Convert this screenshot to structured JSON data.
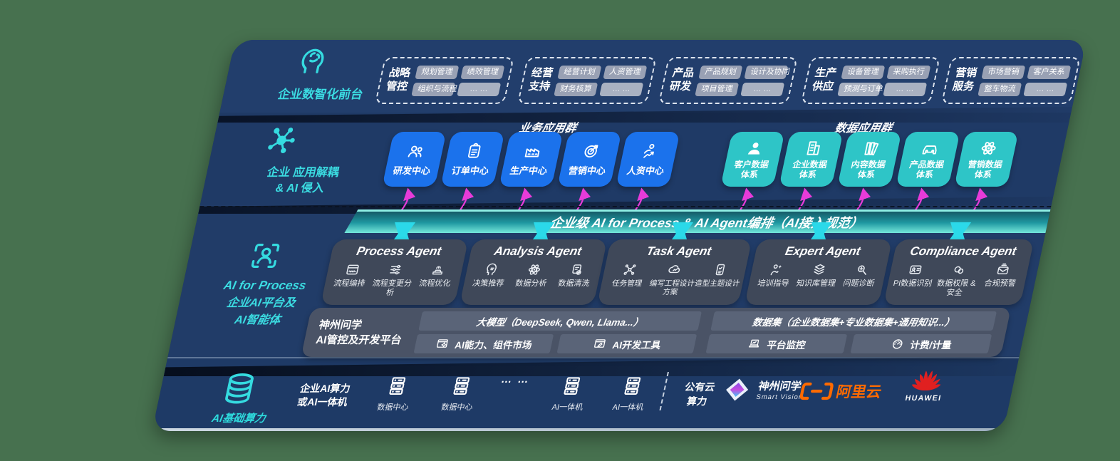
{
  "colors": {
    "background": "#47714F",
    "slab_navy": "#203A66",
    "accent_cyan": "#35DBE0",
    "business_blue": "#1B72EC",
    "data_teal": "#2EC5C7",
    "bar_teal_gradient": [
      "#155A68",
      "#1F97A0",
      "#74E7DB"
    ],
    "arrow_magenta": "#E73BD9",
    "arrow_cyan": "#2BD9E9",
    "agent_box": "#3F4859",
    "platform_box": "#4A5366",
    "aliyun_orange": "#FF6A00",
    "huawei_red": "#E02020"
  },
  "front_office": {
    "label": "企业数智化前台",
    "icon": "brain-head-icon",
    "groups": [
      {
        "name_lines": [
          "战略",
          "管控"
        ],
        "chips": [
          "规划管理",
          "绩效管理",
          "组织与流程",
          "… …"
        ]
      },
      {
        "name_lines": [
          "经营",
          "支持"
        ],
        "chips": [
          "经营计划",
          "人资管理",
          "财务核算",
          "… …"
        ]
      },
      {
        "name_lines": [
          "产品",
          "研发"
        ],
        "chips": [
          "产品规划",
          "设计及协同",
          "项目管理",
          "… …"
        ]
      },
      {
        "name_lines": [
          "生产",
          "供应"
        ],
        "chips": [
          "设备管理",
          "采购执行",
          "预测与订单",
          "… …"
        ]
      },
      {
        "name_lines": [
          "营销",
          "服务"
        ],
        "chips": [
          "市场营销",
          "客户关系",
          "整车物流",
          "… …"
        ]
      }
    ]
  },
  "decoupling": {
    "label_lines": [
      "企业 应用解耦",
      "& AI 侵入"
    ],
    "icon": "molecule-icon",
    "business_group": {
      "title": "业务应用群",
      "boxes": [
        {
          "label": "研发中心",
          "icon": "people-icon"
        },
        {
          "label": "订单中心",
          "icon": "clipboard-icon"
        },
        {
          "label": "生产中心",
          "icon": "factory-icon"
        },
        {
          "label": "营销中心",
          "icon": "target-icon"
        },
        {
          "label": "人资中心",
          "icon": "person-run-icon"
        }
      ]
    },
    "data_group": {
      "title": "数据应用群",
      "boxes": [
        {
          "label_lines": [
            "客户数据",
            "体系"
          ],
          "icon": "user-icon"
        },
        {
          "label_lines": [
            "企业数据",
            "体系"
          ],
          "icon": "building-icon"
        },
        {
          "label_lines": [
            "内容数据",
            "体系"
          ],
          "icon": "books-icon"
        },
        {
          "label_lines": [
            "产品数据",
            "体系"
          ],
          "icon": "car-icon"
        },
        {
          "label_lines": [
            "营销数据",
            "体系"
          ],
          "icon": "atom-icon"
        }
      ]
    }
  },
  "ai_bar": {
    "label": "企业级 AI for Process & AI Agent编排（AI接入规范）"
  },
  "platform_section": {
    "label_lines": [
      "AI for Process",
      "企业AI平台及",
      "AI智能体"
    ],
    "icon": "person-scan-icon",
    "agents": [
      {
        "title": "Process Agent",
        "items": [
          {
            "label": "流程编排",
            "icon": "panel-wave-icon"
          },
          {
            "label": "流程变更分析",
            "icon": "sliders-icon"
          },
          {
            "label": "流程优化",
            "icon": "spark-machine-icon"
          }
        ]
      },
      {
        "title": "Analysis Agent",
        "items": [
          {
            "label": "决策推荐",
            "icon": "head-idea-icon"
          },
          {
            "label": "数据分析",
            "icon": "atom-icon"
          },
          {
            "label": "数据清洗",
            "icon": "data-clean-icon"
          }
        ]
      },
      {
        "title": "Task Agent",
        "items": [
          {
            "label": "任务管理",
            "icon": "node-grid-icon"
          },
          {
            "label": "编写工程设计方案",
            "icon": "cloud-edit-icon"
          },
          {
            "label": "造型主题设计",
            "icon": "doc-check-icon"
          }
        ]
      },
      {
        "title": "Expert Agent",
        "items": [
          {
            "label": "培训指导",
            "icon": "teach-icon"
          },
          {
            "label": "知识库管理",
            "icon": "layers-icon"
          },
          {
            "label": "问题诊断",
            "icon": "diagnose-icon"
          }
        ]
      },
      {
        "title": "Compliance Agent",
        "items": [
          {
            "label": "PI数据识别",
            "icon": "id-card-icon"
          },
          {
            "label": "数据权限 & 安全",
            "icon": "link-rings-icon"
          },
          {
            "label": "合规预警",
            "icon": "mail-alert-icon"
          }
        ]
      }
    ],
    "dev_platform": {
      "label_lines": [
        "神州问学",
        "AI管控及开发平台"
      ],
      "model_bar": "大模型（DeepSeek, Qwen, Llama...）",
      "dataset_bar": "数据集（企业数据集+专业数据集+通用知识...）",
      "cells": [
        {
          "label": "AI能力、组件市场",
          "icon": "window-gear-icon"
        },
        {
          "label": "AI开发工具",
          "icon": "window-pen-icon"
        },
        {
          "label": "平台监控",
          "icon": "laptop-chart-icon"
        },
        {
          "label": "计费/计量",
          "icon": "gauge-icon"
        }
      ]
    }
  },
  "infra": {
    "label": "AI基础算力",
    "icon": "database-icon",
    "compute_lines": [
      "企业AI算力",
      "或AI一体机"
    ],
    "nodes": [
      {
        "label": "数据中心",
        "icon": "server-icon"
      },
      {
        "label": "数据中心",
        "icon": "server-icon"
      },
      {
        "label": "AI一体机",
        "icon": "server-icon"
      },
      {
        "label": "AI一体机",
        "icon": "server-icon"
      }
    ],
    "dots": "… …",
    "public_cloud_lines": [
      "公有云",
      "算力"
    ],
    "logos": {
      "smart_vision": {
        "title": "神州问学",
        "subtitle": "Smart Vision"
      },
      "aliyun": {
        "label": "阿里云"
      },
      "huawei": {
        "label": "HUAWEI"
      }
    }
  }
}
